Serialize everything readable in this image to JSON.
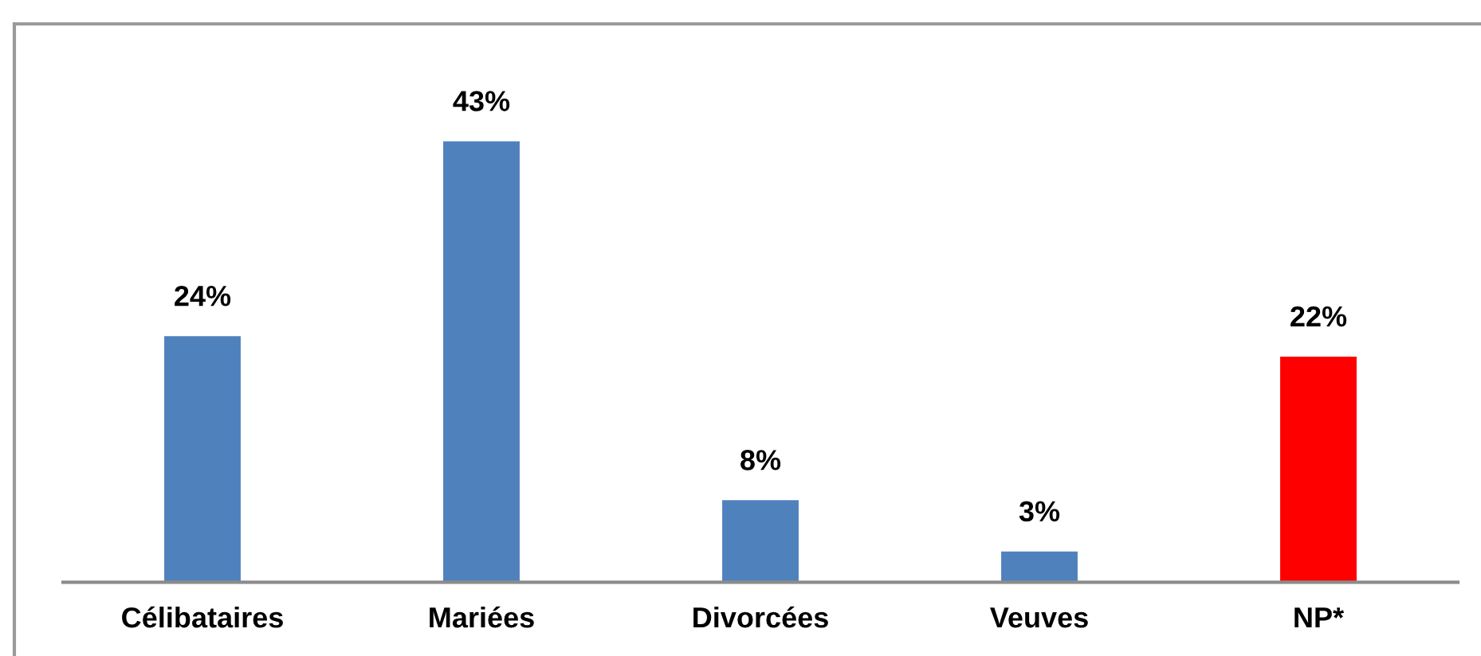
{
  "chart_data": {
    "type": "bar",
    "categories": [
      "Célibataires",
      "Mariées",
      "Divorcées",
      "Veuves",
      "NP*"
    ],
    "values": [
      24,
      43,
      8,
      3,
      22
    ],
    "colors": [
      "#4f81bd",
      "#4f81bd",
      "#4f81bd",
      "#4f81bd",
      "#ff0000"
    ],
    "value_labels": [
      "24%",
      "43%",
      "8%",
      "3%",
      "22%"
    ],
    "tick_labels": "x"
  }
}
